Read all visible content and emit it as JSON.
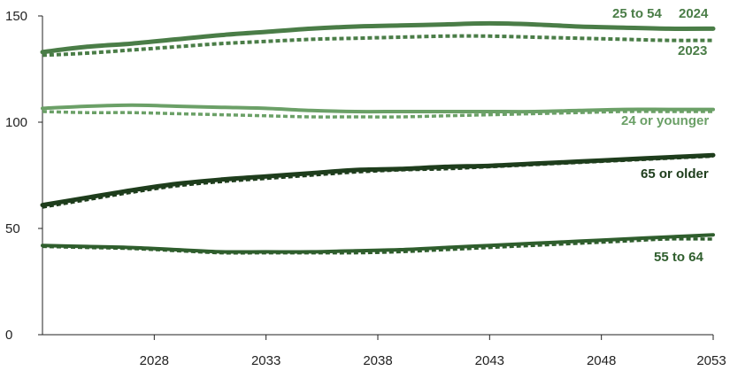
{
  "chart_data": {
    "type": "line",
    "title": "",
    "xlabel": "",
    "ylabel": "",
    "xlim": [
      2023,
      2053
    ],
    "ylim": [
      0,
      150
    ],
    "x_ticks": [
      2028,
      2033,
      2038,
      2043,
      2048,
      2053
    ],
    "y_ticks": [
      0,
      50,
      100,
      150
    ],
    "x": [
      2023,
      2025,
      2027,
      2029,
      2031,
      2033,
      2035,
      2037,
      2039,
      2041,
      2043,
      2045,
      2047,
      2049,
      2051,
      2053
    ],
    "legend": {
      "solid": "2024",
      "dotted": "2023"
    },
    "series": [
      {
        "name": "25 to 54",
        "vintage": "2024",
        "color": "#4a7d47",
        "dashed": false,
        "width": 5,
        "values": [
          133,
          135.5,
          137,
          139,
          141,
          142.5,
          144,
          145,
          145.5,
          146,
          146.5,
          146,
          145,
          144.5,
          144,
          144
        ]
      },
      {
        "name": "25 to 54",
        "vintage": "2023",
        "color": "#4a7d47",
        "dashed": true,
        "width": 4,
        "values": [
          131.5,
          132.5,
          134,
          135.5,
          137,
          138,
          139,
          139.5,
          140,
          140.5,
          140.5,
          140,
          139.5,
          139,
          138.5,
          138.5
        ]
      },
      {
        "name": "24 or younger",
        "vintage": "2024",
        "color": "#6ba067",
        "dashed": false,
        "width": 4,
        "values": [
          106.5,
          107.5,
          108,
          107.5,
          107,
          106.5,
          105.5,
          105,
          105,
          105,
          105,
          105,
          105.5,
          106,
          106,
          106
        ]
      },
      {
        "name": "24 or younger",
        "vintage": "2023",
        "color": "#6ba067",
        "dashed": true,
        "width": 3.5,
        "values": [
          105,
          104.5,
          104.5,
          104,
          103.5,
          103,
          102.5,
          102.5,
          102.5,
          103,
          103.5,
          104,
          104.5,
          105,
          105,
          105
        ]
      },
      {
        "name": "65 or older",
        "vintage": "2024",
        "color": "#1e3d1c",
        "dashed": false,
        "width": 5,
        "values": [
          61,
          64.5,
          68,
          71,
          73,
          74.5,
          76,
          77.5,
          78,
          79,
          79.5,
          80.5,
          81.5,
          82.5,
          83.5,
          84.5
        ]
      },
      {
        "name": "65 or older",
        "vintage": "2023",
        "color": "#1e3d1c",
        "dashed": true,
        "width": 3.5,
        "values": [
          60,
          63.5,
          67,
          70,
          72,
          73.5,
          75,
          76.5,
          77.5,
          78,
          79,
          80,
          81,
          82,
          83,
          84
        ]
      },
      {
        "name": "55 to 64",
        "vintage": "2024",
        "color": "#2f5e2d",
        "dashed": false,
        "width": 4,
        "values": [
          42,
          41.5,
          41,
          40,
          39,
          39,
          39,
          39.5,
          40,
          41,
          42,
          43,
          44,
          45,
          46,
          47
        ]
      },
      {
        "name": "55 to 64",
        "vintage": "2023",
        "color": "#2f5e2d",
        "dashed": true,
        "width": 3.5,
        "values": [
          41.5,
          41,
          40.5,
          39.5,
          38.5,
          38.5,
          38.5,
          38.5,
          39,
          40,
          41,
          42,
          43,
          44,
          45,
          45
        ]
      }
    ],
    "labels": {
      "group_25_54": "25 to 54",
      "year_2024": "2024",
      "year_2023": "2023",
      "group_24_younger": "24 or younger",
      "group_65_older": "65 or older",
      "group_55_64": "55 to 64"
    },
    "label_colors": {
      "group_25_54": "#4a7d47",
      "year_2024": "#4a7d47",
      "year_2023": "#4a7d47",
      "group_24_younger": "#6ba067",
      "group_65_older": "#1e3d1c",
      "group_55_64": "#2f5e2d"
    },
    "axis_color": "#222222",
    "grid": false
  }
}
